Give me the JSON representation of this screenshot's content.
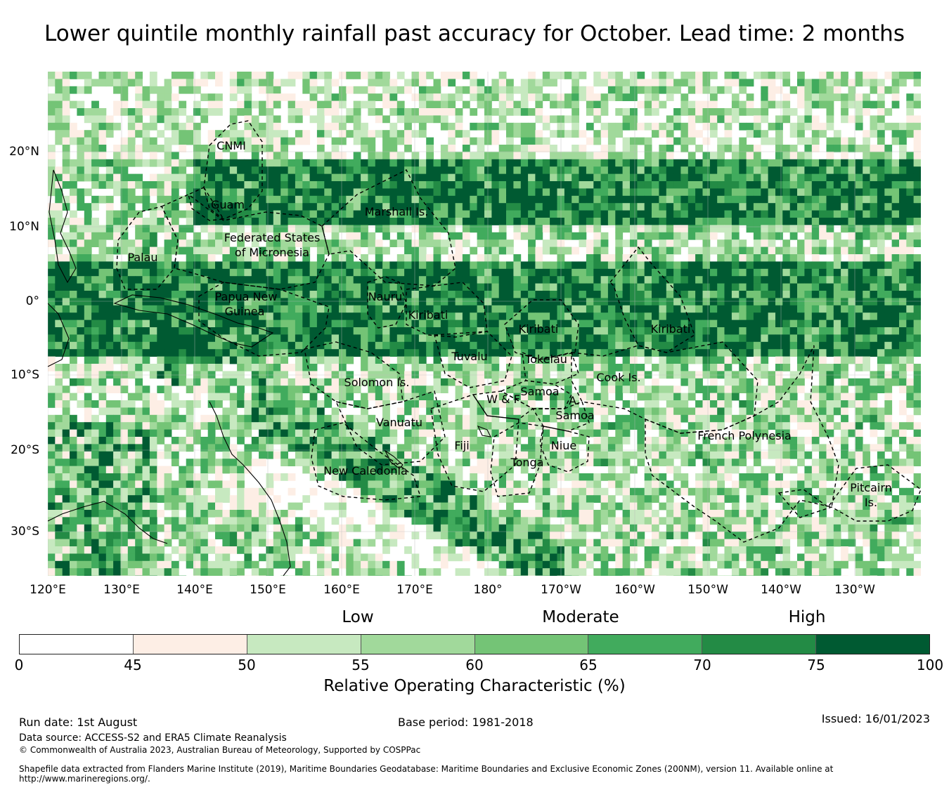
{
  "title": "Lower quintile monthly rainfall past accuracy for October. Lead time: 2 months",
  "map": {
    "lon_ticks": [
      "120°E",
      "130°E",
      "140°E",
      "150°E",
      "160°E",
      "170°E",
      "180°",
      "170°W",
      "160°W",
      "150°W",
      "140°W",
      "130°W"
    ],
    "lat_ticks": [
      "20°N",
      "10°N",
      "0°",
      "10°S",
      "20°S",
      "30°S"
    ],
    "regions": [
      {
        "name": "CNMI"
      },
      {
        "name": "Guam"
      },
      {
        "name": "Palau"
      },
      {
        "name": "Federated States"
      },
      {
        "name": "of Micronesia"
      },
      {
        "name": "Marshall Is."
      },
      {
        "name": "Papua New"
      },
      {
        "name": "Guinea"
      },
      {
        "name": "Nauru"
      },
      {
        "name": "Kiribati"
      },
      {
        "name": "Kiribati"
      },
      {
        "name": "Kiribati"
      },
      {
        "name": "Tuvalu"
      },
      {
        "name": "Tokelau"
      },
      {
        "name": "Solomon Is."
      },
      {
        "name": "Cook Is."
      },
      {
        "name": "Samoa"
      },
      {
        "name": "W & F"
      },
      {
        "name": "A."
      },
      {
        "name": "Samoa"
      },
      {
        "name": "Vanuatu"
      },
      {
        "name": "Fiji"
      },
      {
        "name": "Niue"
      },
      {
        "name": "Tonga"
      },
      {
        "name": "French Polynesia"
      },
      {
        "name": "New Caledonia"
      },
      {
        "name": "Pitcairn"
      },
      {
        "name": "Is."
      }
    ]
  },
  "legend": {
    "categories": [
      "Low",
      "Moderate",
      "High"
    ],
    "bins": [
      {
        "color": "#ffffff"
      },
      {
        "color": "#fdeee5"
      },
      {
        "color": "#c7e9c0"
      },
      {
        "color": "#a1d99b"
      },
      {
        "color": "#74c476"
      },
      {
        "color": "#41ab5d"
      },
      {
        "color": "#238b45"
      },
      {
        "color": "#005a32"
      }
    ],
    "ticks": [
      "0",
      "45",
      "50",
      "55",
      "60",
      "65",
      "70",
      "75",
      "100"
    ],
    "label": "Relative Operating Characteristic (%)"
  },
  "footer": {
    "run_date": "Run date: 1st August",
    "base_period": "Base period: 1981-2018",
    "issued": "Issued: 16/01/2023",
    "data_source": "Data source: ACCESS-S2 and ERA5 Climate Reanalysis",
    "copyright": "© Commonwealth of Australia 2023, Australian Bureau of Meteorology, Supported by COSPPac",
    "shapefile_line1": "Shapefile data extracted from Flanders Marine Institute (2019), Maritime Boundaries Geodatabase: Maritime Boundaries and Exclusive Economic Zones (200NM), version 11. Available online at",
    "shapefile_line2": "http://www.marineregions.org/."
  }
}
